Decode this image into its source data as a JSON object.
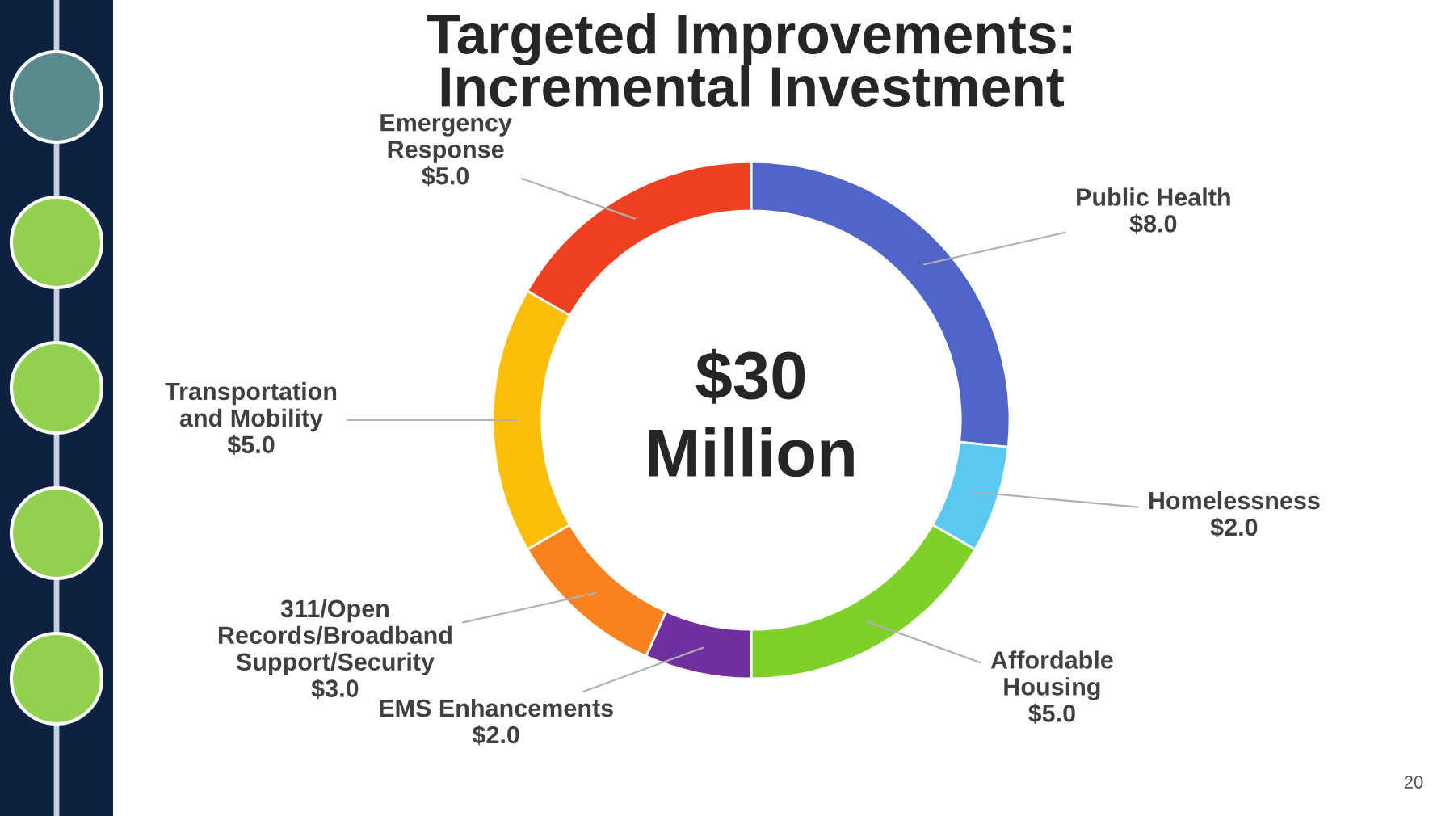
{
  "chart_data": {
    "type": "donut",
    "title": "Targeted Improvements:\nIncremental Investment",
    "categories": [
      "Public Health",
      "Homelessness",
      "Affordable\nHousing",
      "EMS Enhancements",
      "311/Open\nRecords/Broadband\nSupport/Security",
      "Transportation\nand Mobility",
      "Emergency\nResponse"
    ],
    "values": [
      8,
      2,
      5,
      2,
      3,
      5,
      5
    ],
    "colors": [
      "#4f66c8",
      "#5bc8f0",
      "#7fd12a",
      "#7030a0",
      "#f7821f",
      "#fbbf0b",
      "#ee4122"
    ],
    "value_labels": [
      "$8.0",
      "$2.0",
      "$5.0",
      "$2.0",
      "$3.0",
      "$5.0",
      "$5.0"
    ],
    "annotations": [
      "$30\nMillion",
      "20"
    ]
  }
}
